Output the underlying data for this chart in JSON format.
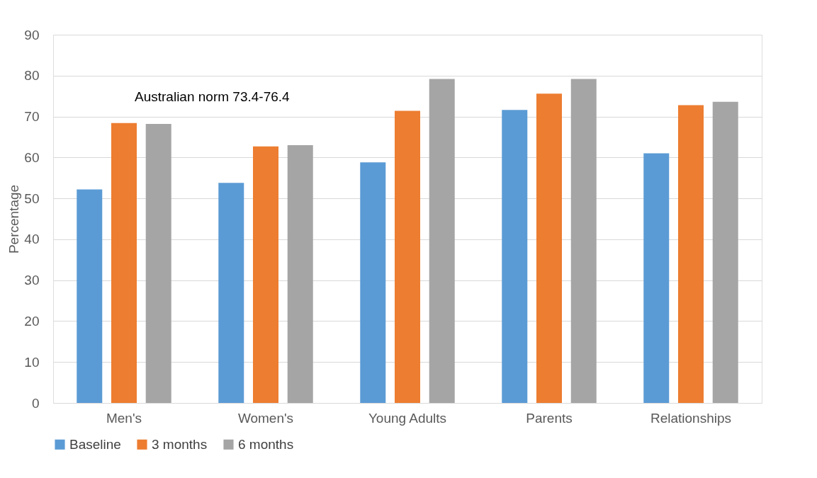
{
  "chart_data": {
    "type": "bar",
    "ylabel": "Percentage",
    "categories": [
      "Men's",
      "Women's",
      "Young Adults",
      "Parents",
      "Relationships"
    ],
    "series": [
      {
        "name": "Baseline",
        "color": "#5b9bd5",
        "values": [
          52.2,
          53.8,
          58.8,
          71.6,
          61.0
        ]
      },
      {
        "name": "3 months",
        "color": "#ed7d31",
        "values": [
          68.4,
          62.7,
          71.4,
          75.6,
          72.8
        ]
      },
      {
        "name": "6 months",
        "color": "#a5a5a5",
        "values": [
          68.2,
          63.0,
          79.2,
          79.2,
          73.6
        ]
      }
    ],
    "ylim": [
      0,
      90
    ],
    "yticks": [
      0,
      10,
      20,
      30,
      40,
      50,
      60,
      70,
      80,
      90
    ],
    "annotations": [
      "Australian norm 73.4-76.4"
    ],
    "grid": "y",
    "legend": "bottom"
  }
}
